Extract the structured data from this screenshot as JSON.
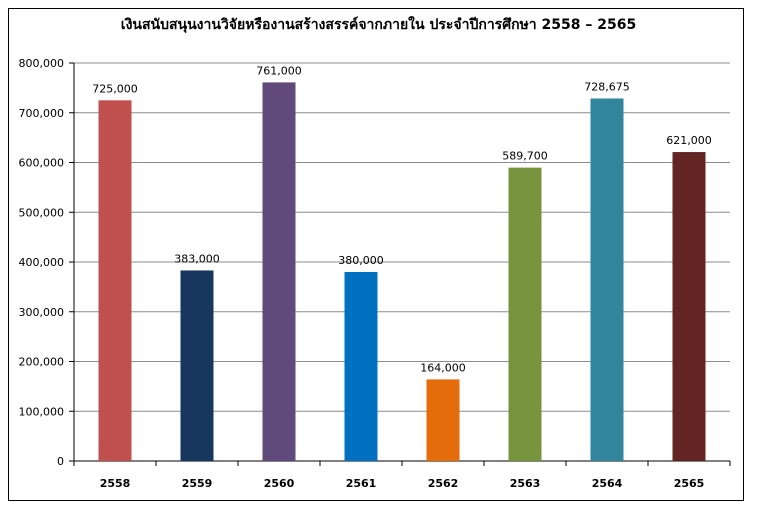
{
  "chart_data": {
    "type": "bar",
    "title": "เงินสนับสนุนงานวิจัยหรืองานสร้างสรรค์จากภายใน ประจำปีการศึกษา 2558 – 2565",
    "xlabel": "",
    "ylabel": "",
    "categories": [
      "2558",
      "2559",
      "2560",
      "2561",
      "2562",
      "2563",
      "2564",
      "2565"
    ],
    "values": [
      725000,
      383000,
      761000,
      380000,
      164000,
      589700,
      728675,
      621000
    ],
    "data_labels": [
      "725,000",
      "383,000",
      "761,000",
      "380,000",
      "164,000",
      "589,700",
      "728,675",
      "621,000"
    ],
    "bar_colors": [
      "#C0504D",
      "#17375E",
      "#604A7B",
      "#0070C0",
      "#E46C0A",
      "#77933C",
      "#31859C",
      "#632523"
    ],
    "ylim": [
      0,
      800000
    ],
    "yticks": [
      0,
      100000,
      200000,
      300000,
      400000,
      500000,
      600000,
      700000,
      800000
    ],
    "ytick_labels": [
      "0",
      "100,000",
      "200,000",
      "300,000",
      "400,000",
      "500,000",
      "600,000",
      "700,000",
      "800,000"
    ],
    "grid": true,
    "legend": "none"
  }
}
